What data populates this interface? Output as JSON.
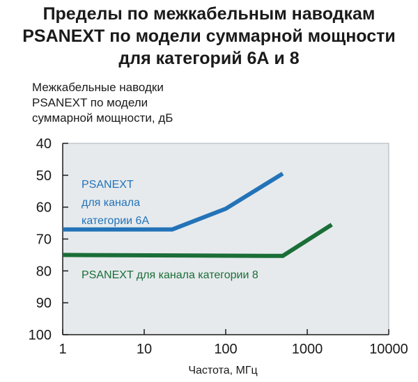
{
  "chart_data": {
    "type": "line",
    "title_lines": [
      "Пределы по межкабельным наводкам",
      "PSANEXT по модели суммарной мощности",
      "для категорий 6А и 8"
    ],
    "ylabel_lines": [
      "Межкабельные наводки",
      "PSANEXT по модели",
      "суммарной мощности, дБ"
    ],
    "xlabel": "Частота, МГц",
    "x_scale": "log",
    "xlim": [
      1,
      10000
    ],
    "ylim": [
      40,
      100
    ],
    "y_inverted": true,
    "x_ticks": [
      "1",
      "10",
      "100",
      "1000",
      "10000"
    ],
    "x_tick_values": [
      1,
      10,
      100,
      1000,
      10000
    ],
    "y_ticks": [
      "40",
      "50",
      "60",
      "70",
      "80",
      "90",
      "100"
    ],
    "y_tick_values": [
      40,
      50,
      60,
      70,
      80,
      90,
      100
    ],
    "grid": false,
    "background": "#e6eaed",
    "series": [
      {
        "label_lines": [
          "PSANEXT",
          "для канала",
          "категории 6А"
        ],
        "color": "#2373b8",
        "points": [
          [
            1,
            67
          ],
          [
            22,
            67
          ],
          [
            100,
            60.5
          ],
          [
            500,
            49.5
          ]
        ]
      },
      {
        "label_lines": [
          "PSANEXT для канала категории 8"
        ],
        "color": "#1a6e37",
        "points": [
          [
            1,
            75
          ],
          [
            500,
            75.3
          ],
          [
            2000,
            65.5
          ]
        ]
      }
    ]
  }
}
